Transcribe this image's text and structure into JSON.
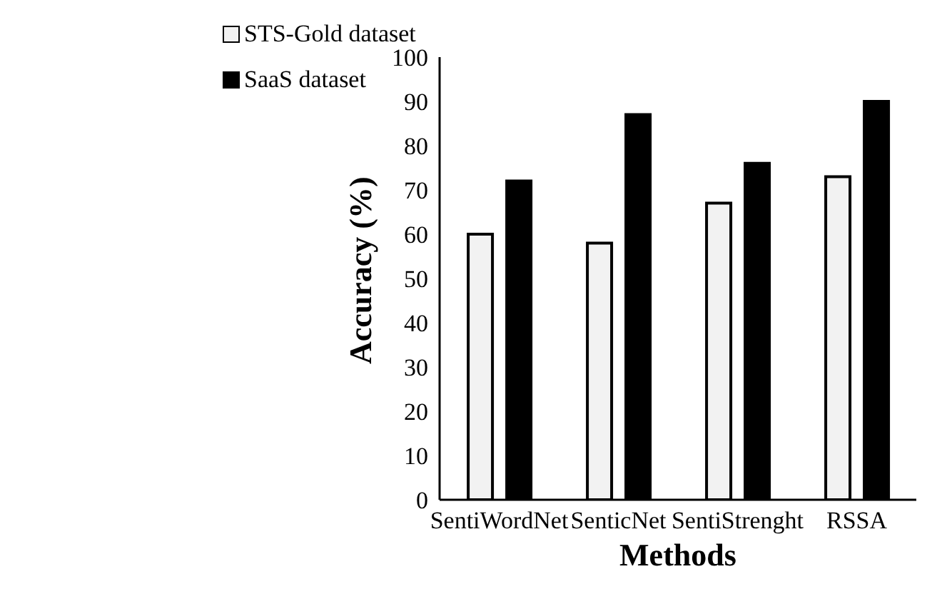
{
  "chart_data": {
    "type": "bar",
    "xlabel": "Methods",
    "ylabel": "Accuracy (%)",
    "categories": [
      "SentiWordNet",
      "SenticNet",
      "SentiStrenght",
      "RSSA"
    ],
    "series": [
      {
        "name": "STS-Gold dataset",
        "color": "#f2f2f2",
        "values": [
          60,
          58,
          67,
          73
        ]
      },
      {
        "name": "SaaS dataset",
        "color": "#000000",
        "values": [
          72,
          87,
          76,
          90
        ]
      }
    ],
    "ylim": [
      0,
      100
    ],
    "yticks": [
      0,
      10,
      20,
      30,
      40,
      50,
      60,
      70,
      80,
      90,
      100
    ],
    "grid": false,
    "legend": "top left"
  }
}
